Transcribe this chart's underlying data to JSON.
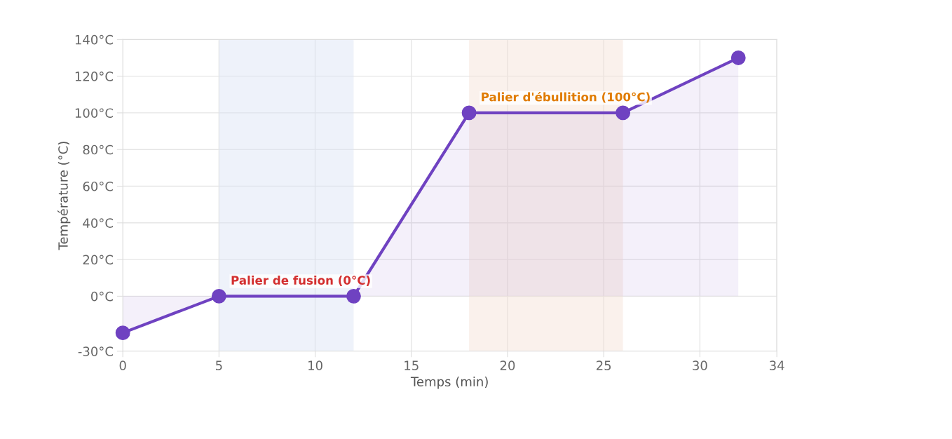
{
  "chart_data": {
    "type": "area",
    "xlabel": "Temps (min)",
    "ylabel": "Température (°C)",
    "x": [
      0,
      5,
      12,
      18,
      26,
      32
    ],
    "series": [
      {
        "color": "#6f42c1",
        "values": [
          -20,
          0,
          0,
          100,
          100,
          130
        ]
      }
    ],
    "xlim": [
      0,
      34
    ],
    "xticks": [
      0,
      5,
      10,
      15,
      20,
      25,
      30,
      34
    ],
    "ylim": [
      -30,
      140
    ],
    "yticks": [
      {
        "value": -30,
        "label": "-30°C"
      },
      {
        "value": 0,
        "label": "0°C"
      },
      {
        "value": 20,
        "label": "20°C"
      },
      {
        "value": 40,
        "label": "40°C"
      },
      {
        "value": 60,
        "label": "60°C"
      },
      {
        "value": 80,
        "label": "80°C"
      },
      {
        "value": 100,
        "label": "100°C"
      },
      {
        "value": 120,
        "label": "120°C"
      },
      {
        "value": 140,
        "label": "140°C"
      }
    ],
    "bands": [
      {
        "axis": "x",
        "from": 5,
        "to": 12,
        "label": "Palier de fusion (0°C)",
        "color": "#d9e3f5"
      },
      {
        "axis": "x",
        "from": 18,
        "to": 26,
        "label": "Palier d'ébullition (100°C)",
        "color": "#f5dfd5"
      }
    ],
    "grid": true,
    "marker": "circle",
    "line_style": "solid"
  }
}
